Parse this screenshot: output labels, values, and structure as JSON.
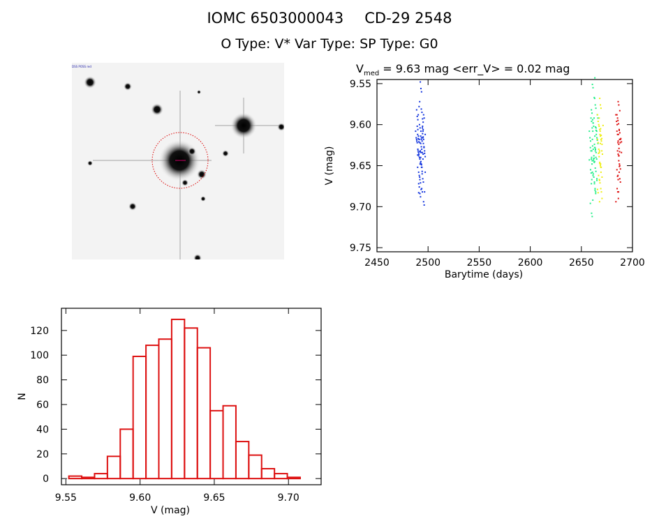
{
  "header": {
    "title_id": "IOMC 6503000043",
    "title_name": "CD-29  2548",
    "subtitle": "O Type: V*  Var Type:   SP Type: G0"
  },
  "image_panel": {
    "corner_labels": [
      "DSS POSS red",
      "",
      "",
      ""
    ]
  },
  "chart_data": [
    {
      "type": "scatter",
      "title_prefix": "V",
      "title_sub": "med",
      "title_rest": " = 9.63 mag <err_V> = 0.02 mag",
      "xlabel": "Barytime (days)",
      "ylabel": "V (mag)",
      "xlim": [
        2450,
        2700
      ],
      "ylim": [
        9.755,
        9.545
      ],
      "xticks": [
        "2450",
        "2500",
        "2550",
        "2600",
        "2650",
        "2700"
      ],
      "xtick_values": [
        2450,
        2500,
        2550,
        2600,
        2650,
        2700
      ],
      "yticks": [
        "9.55",
        "9.60",
        "9.65",
        "9.70",
        "9.75"
      ],
      "ytick_values": [
        9.55,
        9.6,
        9.65,
        9.7,
        9.75
      ],
      "series": [
        {
          "name": "group1",
          "color": "#1133dd",
          "x": [
            2489,
            2490,
            2490,
            2491,
            2491,
            2492,
            2492,
            2493,
            2493,
            2494,
            2494,
            2495,
            2495,
            2496,
            2496,
            2490,
            2492,
            2494,
            2493,
            2495,
            2491,
            2493,
            2496,
            2492,
            2494
          ],
          "y": [
            9.62,
            9.63,
            9.61,
            9.64,
            9.6,
            9.63,
            9.65,
            9.62,
            9.66,
            9.61,
            9.64,
            9.63,
            9.6,
            9.62,
            9.67,
            9.59,
            9.68,
            9.585,
            9.645,
            9.69,
            9.625,
            9.56,
            9.635,
            9.675,
            9.615
          ]
        },
        {
          "name": "group2",
          "color": "#22ee88",
          "x": [
            2659,
            2660,
            2660,
            2661,
            2661,
            2662,
            2662,
            2663,
            2663,
            2664,
            2664,
            2665,
            2665,
            2660,
            2662,
            2664,
            2661,
            2663,
            2659,
            2665
          ],
          "y": [
            9.62,
            9.64,
            9.6,
            9.63,
            9.66,
            9.61,
            9.65,
            9.58,
            9.64,
            9.62,
            9.67,
            9.63,
            9.6,
            9.7,
            9.555,
            9.68,
            9.59,
            9.645,
            9.655,
            9.615
          ]
        },
        {
          "name": "group3",
          "color": "#eeee11",
          "x": [
            2667,
            2667,
            2668,
            2668,
            2669,
            2669,
            2670,
            2668,
            2669,
            2667,
            2670,
            2668
          ],
          "y": [
            9.6,
            9.63,
            9.61,
            9.65,
            9.62,
            9.66,
            9.64,
            9.58,
            9.69,
            9.675,
            9.605,
            9.635
          ]
        },
        {
          "name": "group4",
          "color": "#dd1111",
          "x": [
            2685,
            2686,
            2686,
            2687,
            2687,
            2688,
            2686,
            2687,
            2685,
            2688,
            2686,
            2687
          ],
          "y": [
            9.6,
            9.62,
            9.64,
            9.61,
            9.65,
            9.63,
            9.58,
            9.67,
            9.69,
            9.625,
            9.655,
            9.595
          ]
        }
      ]
    },
    {
      "type": "bar",
      "subtype": "histogram",
      "xlabel": "V (mag)",
      "ylabel": "N",
      "xlim": [
        9.547,
        9.722
      ],
      "ylim": [
        -5,
        138
      ],
      "xticks": [
        "9.55",
        "9.60",
        "9.65",
        "9.70"
      ],
      "xtick_values": [
        9.55,
        9.6,
        9.65,
        9.7
      ],
      "yticks": [
        "0",
        "20",
        "40",
        "60",
        "80",
        "100",
        "120"
      ],
      "ytick_values": [
        0,
        20,
        40,
        60,
        80,
        100,
        120
      ],
      "bin_start": 9.552,
      "bin_width": 0.00866,
      "values": [
        2,
        1,
        4,
        18,
        40,
        99,
        108,
        113,
        129,
        122,
        106,
        55,
        59,
        30,
        19,
        8,
        4,
        1
      ],
      "color": "#dd1111"
    }
  ]
}
